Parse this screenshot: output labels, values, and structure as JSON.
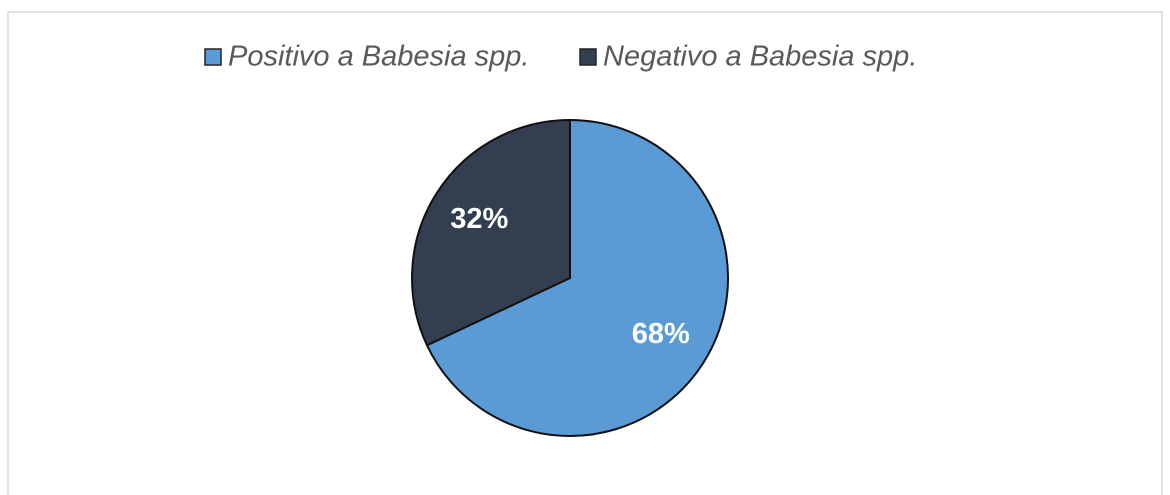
{
  "chart_data": {
    "type": "pie",
    "categories": [
      "Positivo a Babesia spp.",
      "Negativo a Babesia spp."
    ],
    "values": [
      68,
      32
    ],
    "value_labels": [
      "68%",
      "32%"
    ],
    "colors": [
      "#5b9bd5",
      "#333f50"
    ],
    "legend": "top"
  }
}
